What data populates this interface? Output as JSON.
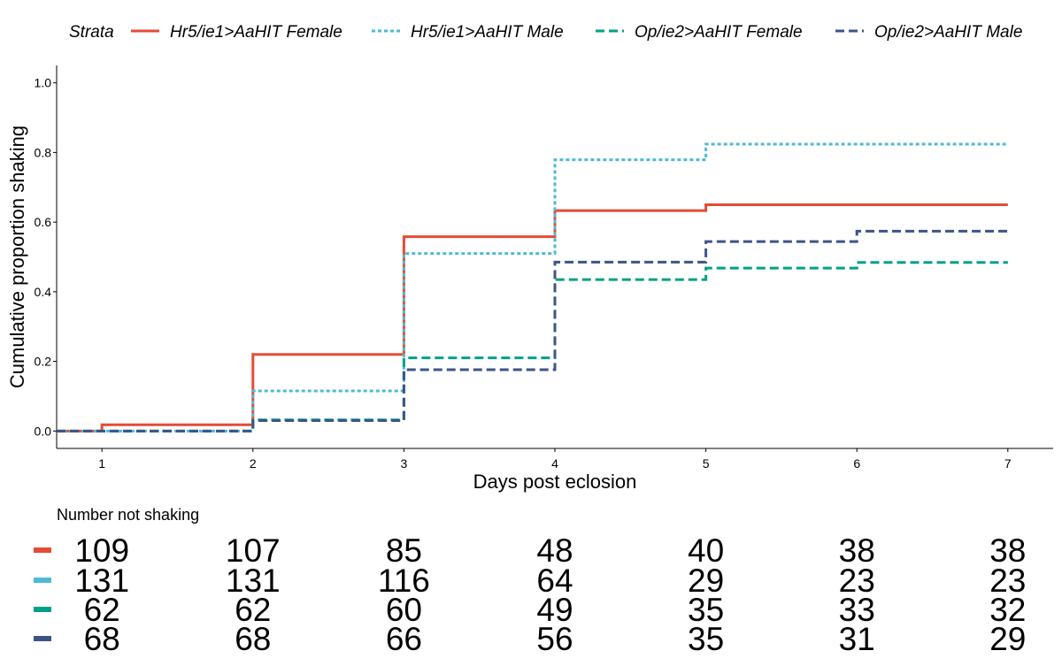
{
  "chart_data": {
    "type": "line",
    "step": true,
    "xlabel": "Days post eclosion",
    "ylabel": "Cumulative proportion shaking",
    "xlim": [
      0.7,
      7.3
    ],
    "ylim": [
      -0.05,
      1.05
    ],
    "x_ticks": [
      1,
      2,
      3,
      4,
      5,
      6,
      7
    ],
    "y_ticks": [
      0.0,
      0.2,
      0.4,
      0.6,
      0.8,
      1.0
    ],
    "y_tick_labels": [
      "0.0",
      "0.2",
      "0.4",
      "0.6",
      "0.8",
      "1.0"
    ],
    "grid": false,
    "legend": {
      "position": "top",
      "title": "Strata",
      "entries": [
        "Hr5/ie1>AaHIT Female",
        "Hr5/ie1>AaHIT Male",
        "Op/ie2>AaHIT Female",
        "Op/ie2>AaHIT Male"
      ]
    },
    "series": [
      {
        "name": "Hr5/ie1>AaHIT Female",
        "color": "#E64B35",
        "linestyle": "solid",
        "x": [
          0.7,
          1,
          2,
          3,
          4,
          5,
          6,
          7
        ],
        "y": [
          0.0,
          0.018,
          0.22,
          0.558,
          0.633,
          0.65,
          0.65,
          0.65
        ]
      },
      {
        "name": "Hr5/ie1>AaHIT Male",
        "color": "#4DBBD5",
        "linestyle": "dotted",
        "x": [
          0.7,
          1,
          2,
          3,
          4,
          5,
          6,
          7
        ],
        "y": [
          0.0,
          0.0,
          0.115,
          0.51,
          0.779,
          0.824,
          0.824,
          0.824
        ]
      },
      {
        "name": "Op/ie2>AaHIT Female",
        "color": "#00A087",
        "linestyle": "dashed",
        "x": [
          0.7,
          1,
          2,
          3,
          4,
          5,
          6,
          7
        ],
        "y": [
          0.0,
          0.0,
          0.032,
          0.21,
          0.435,
          0.468,
          0.484,
          0.484
        ]
      },
      {
        "name": "Op/ie2>AaHIT Male",
        "color": "#3C5488",
        "linestyle": "dashed",
        "x": [
          0.7,
          1,
          2,
          3,
          4,
          5,
          6,
          7
        ],
        "y": [
          0.0,
          0.0,
          0.03,
          0.176,
          0.485,
          0.544,
          0.574,
          0.574
        ]
      }
    ],
    "risk_table": {
      "title": "Number not shaking",
      "times": [
        1,
        2,
        3,
        4,
        5,
        6,
        7
      ],
      "rows": [
        {
          "color": "#E64B35",
          "values": [
            "109",
            "107",
            "85",
            "48",
            "40",
            "38",
            "38"
          ]
        },
        {
          "color": "#4DBBD5",
          "values": [
            "131",
            "131",
            "116",
            "64",
            "29",
            "23",
            "23"
          ]
        },
        {
          "color": "#00A087",
          "values": [
            "62",
            "62",
            "60",
            "49",
            "35",
            "33",
            "32"
          ]
        },
        {
          "color": "#3C5488",
          "values": [
            "68",
            "68",
            "66",
            "56",
            "35",
            "31",
            "29"
          ]
        }
      ]
    }
  }
}
